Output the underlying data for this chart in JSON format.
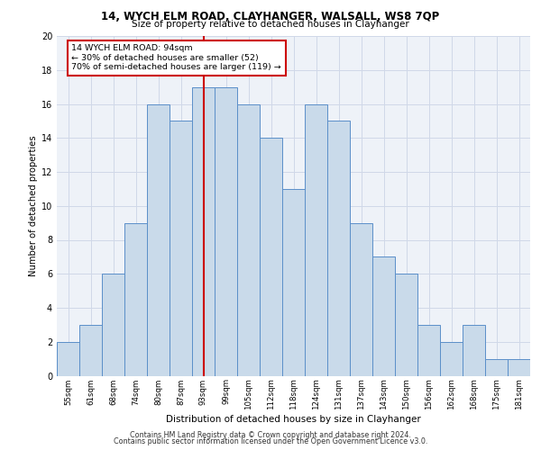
{
  "title1": "14, WYCH ELM ROAD, CLAYHANGER, WALSALL, WS8 7QP",
  "title2": "Size of property relative to detached houses in Clayhanger",
  "xlabel": "Distribution of detached houses by size in Clayhanger",
  "ylabel": "Number of detached properties",
  "bin_labels": [
    "55sqm",
    "61sqm",
    "68sqm",
    "74sqm",
    "80sqm",
    "87sqm",
    "93sqm",
    "99sqm",
    "105sqm",
    "112sqm",
    "118sqm",
    "124sqm",
    "131sqm",
    "137sqm",
    "143sqm",
    "150sqm",
    "156sqm",
    "162sqm",
    "168sqm",
    "175sqm",
    "181sqm"
  ],
  "bar_heights": [
    2,
    3,
    6,
    9,
    16,
    15,
    17,
    17,
    16,
    14,
    11,
    16,
    15,
    9,
    7,
    6,
    3,
    2,
    3,
    1,
    1
  ],
  "bar_color": "#c9daea",
  "bar_edge_color": "#5b8fc9",
  "vline_color": "#cc0000",
  "annotation_text": "14 WYCH ELM ROAD: 94sqm\n← 30% of detached houses are smaller (52)\n70% of semi-detached houses are larger (119) →",
  "annotation_box_color": "#ffffff",
  "annotation_box_edge": "#cc0000",
  "ylim": [
    0,
    20
  ],
  "yticks": [
    0,
    2,
    4,
    6,
    8,
    10,
    12,
    14,
    16,
    18,
    20
  ],
  "footer1": "Contains HM Land Registry data © Crown copyright and database right 2024.",
  "footer2": "Contains public sector information licensed under the Open Government Licence v3.0.",
  "grid_color": "#d0d8e8",
  "background_color": "#eef2f8"
}
